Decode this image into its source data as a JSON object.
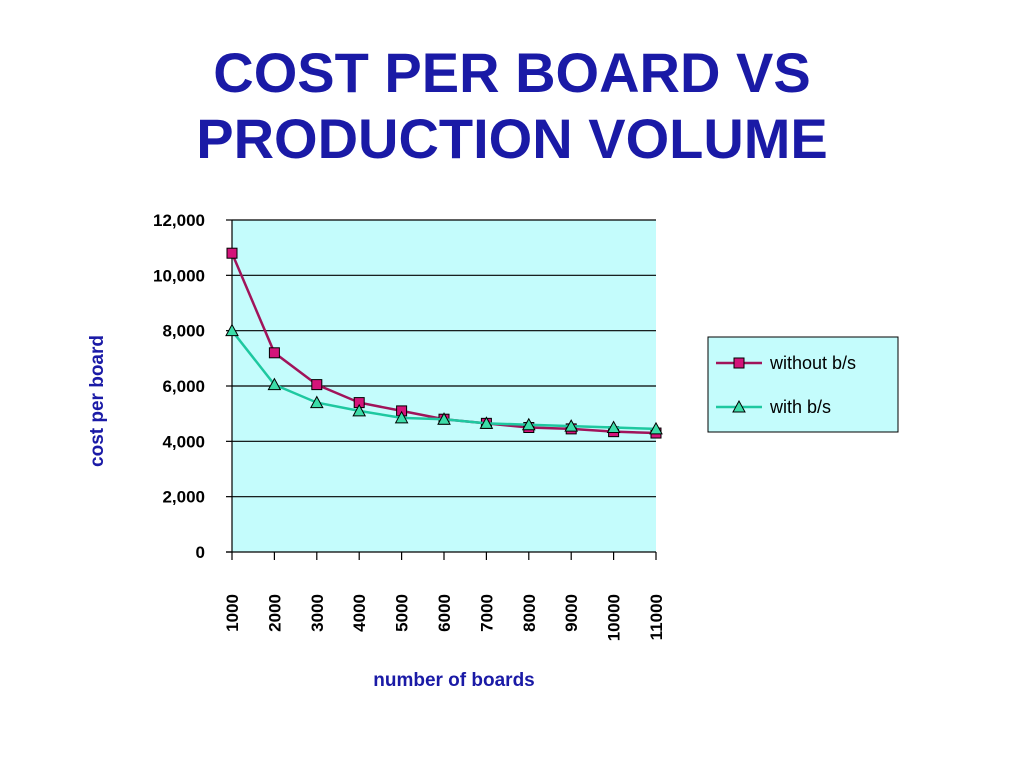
{
  "title": {
    "line1": "COST PER BOARD VS",
    "line2": "PRODUCTION VOLUME"
  },
  "colors": {
    "title": "#1a1aa6",
    "plot_background": "#c4fcfc",
    "without_series": "#a0145a",
    "without_marker": "#d4147a",
    "with_series": "#1ec8a0",
    "with_marker": "#3cdca8"
  },
  "chart_data": {
    "type": "line",
    "xlabel": "number of boards",
    "ylabel": "cost per board",
    "categories": [
      "1000",
      "2000",
      "3000",
      "4000",
      "5000",
      "6000",
      "7000",
      "8000",
      "9000",
      "10000",
      "11000"
    ],
    "ylim": [
      0,
      12000
    ],
    "yticks": [
      "0",
      "2,000",
      "4,000",
      "6,000",
      "8,000",
      "10,000",
      "12,000"
    ],
    "ytick_values": [
      0,
      2000,
      4000,
      6000,
      8000,
      10000,
      12000
    ],
    "grid": "horizontal",
    "legend_position": "right",
    "series": [
      {
        "name": "without b/s",
        "marker": "square",
        "values": [
          10800,
          7200,
          6050,
          5400,
          5100,
          4800,
          4650,
          4500,
          4450,
          4350,
          4300
        ]
      },
      {
        "name": "with b/s",
        "marker": "triangle",
        "values": [
          8000,
          6050,
          5400,
          5100,
          4850,
          4800,
          4650,
          4600,
          4550,
          4500,
          4450
        ]
      }
    ]
  }
}
